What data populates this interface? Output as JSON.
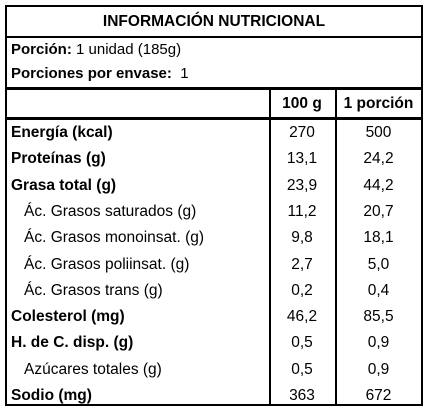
{
  "title": "INFORMACIÓN NUTRICIONAL",
  "serving": {
    "portion_label": "Porción:",
    "portion_value": "1 unidad (185g)",
    "per_package_label": "Porciones por envase:",
    "per_package_value": "1"
  },
  "columns": {
    "per100": "100 g",
    "per_portion": "1 porción"
  },
  "rows": [
    {
      "name": "Energía (kcal)",
      "per100": "270",
      "per_portion": "500",
      "bold": true
    },
    {
      "name": "Proteínas (g)",
      "per100": "13,1",
      "per_portion": "24,2",
      "bold": true
    },
    {
      "name": "Grasa total (g)",
      "per100": "23,9",
      "per_portion": "44,2",
      "bold": true
    },
    {
      "name": "Ác. Grasos saturados (g)",
      "per100": "11,2",
      "per_portion": "20,7",
      "bold": false
    },
    {
      "name": "Ác. Grasos monoinsat. (g)",
      "per100": "9,8",
      "per_portion": "18,1",
      "bold": false
    },
    {
      "name": "Ác. Grasos poliinsat. (g)",
      "per100": "2,7",
      "per_portion": "5,0",
      "bold": false
    },
    {
      "name": "Ác. Grasos trans (g)",
      "per100": "0,2",
      "per_portion": "0,4",
      "bold": false
    },
    {
      "name": "Colesterol (mg)",
      "per100": "46,2",
      "per_portion": "85,5",
      "bold": true
    },
    {
      "name": "H. de C. disp. (g)",
      "per100": "0,5",
      "per_portion": "0,9",
      "bold": true
    },
    {
      "name": "Azúcares totales (g)",
      "per100": "0,5",
      "per_portion": "0,9",
      "bold": false
    },
    {
      "name": "Sodio (mg)",
      "per100": "363",
      "per_portion": "672",
      "bold": true
    }
  ]
}
